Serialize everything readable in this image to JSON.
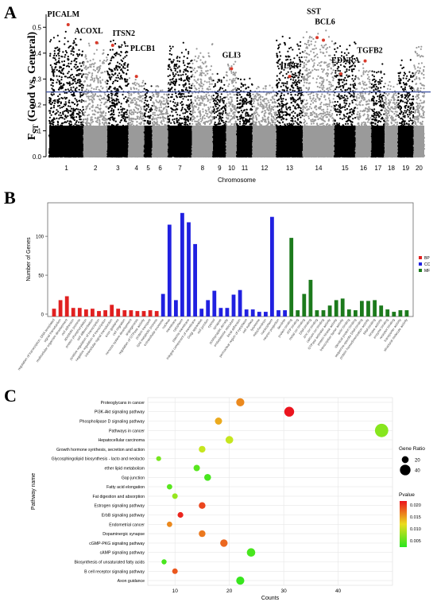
{
  "panels": {
    "a": "A",
    "b": "B",
    "c": "C"
  },
  "chart_data": [
    {
      "panel": "A",
      "type": "scatter",
      "ylabel_main": "F",
      "ylabel_sub": "ST",
      "ylabel_rest": " (Good vs. General)",
      "xlabel": "Chromosome",
      "ylim": [
        0,
        0.55
      ],
      "yticks": [
        0.0,
        0.1,
        0.2,
        0.3,
        0.4,
        0.5
      ],
      "threshold": 0.25,
      "threshold_color": "#3a4fa0",
      "point_colors": [
        "#000000",
        "#9a9a9a"
      ],
      "highlight_color": "#d93a2b",
      "chromosomes": [
        "1",
        "2",
        "3",
        "4",
        "5",
        "6",
        "7",
        "8",
        "9",
        "10",
        "11",
        "12",
        "13",
        "14",
        "15",
        "16",
        "17",
        "18",
        "19",
        "20"
      ],
      "chrom_weights": [
        13,
        9,
        8,
        6,
        3,
        6,
        9,
        8,
        5,
        4,
        6,
        9,
        10,
        12,
        8,
        6,
        5,
        5,
        6,
        4
      ],
      "chrom_peaks": [
        0.5,
        0.46,
        0.48,
        0.32,
        0.3,
        0.3,
        0.45,
        0.44,
        0.33,
        0.4,
        0.32,
        0.3,
        0.48,
        0.5,
        0.46,
        0.38,
        0.36,
        0.3,
        0.38,
        0.45
      ],
      "genes": [
        {
          "name": "PICALM",
          "chrom": "1",
          "pos": 0.55,
          "fst": 0.51
        },
        {
          "name": "ACOXL",
          "chrom": "2",
          "pos": 0.55,
          "fst": 0.44
        },
        {
          "name": "ITSN2",
          "chrom": "3",
          "pos": 0.25,
          "fst": 0.43
        },
        {
          "name": "PLCB1",
          "chrom": "4",
          "pos": 0.5,
          "fst": 0.31
        },
        {
          "name": "GLI3",
          "chrom": "10",
          "pos": 0.5,
          "fst": 0.34
        },
        {
          "name": "IL6R",
          "chrom": "13",
          "pos": 0.5,
          "fst": 0.31
        },
        {
          "name": "SST",
          "chrom": "14",
          "pos": 0.45,
          "fst": 0.46
        },
        {
          "name": "BCL6",
          "chrom": "14",
          "pos": 0.65,
          "fst": 0.45
        },
        {
          "name": "EDNRA",
          "chrom": "15",
          "pos": 0.3,
          "fst": 0.32
        },
        {
          "name": "TGFB2",
          "chrom": "16",
          "pos": 0.6,
          "fst": 0.37
        }
      ]
    },
    {
      "panel": "B",
      "type": "bar",
      "ylabel": "Number of Genes",
      "ylim": [
        0,
        140
      ],
      "yticks": [
        0,
        50,
        100
      ],
      "legend": [
        {
          "name": "BP",
          "color": "#e02020"
        },
        {
          "name": "CC",
          "color": "#2020e0"
        },
        {
          "name": "MF",
          "color": "#1c7a1c"
        }
      ],
      "series": [
        {
          "name": "BP",
          "values": [
            7,
            18,
            23,
            8,
            8,
            6,
            7,
            4,
            5,
            12,
            7,
            5,
            5,
            4,
            4,
            5,
            4
          ]
        },
        {
          "name": "CC",
          "values": [
            26,
            115,
            18,
            130,
            118,
            90,
            7,
            18,
            30,
            8,
            8,
            25,
            31,
            6,
            6,
            3,
            3,
            125,
            5,
            5
          ]
        },
        {
          "name": "MF",
          "values": [
            98,
            5,
            26,
            44,
            5,
            5,
            11,
            18,
            20,
            6,
            5,
            17,
            17,
            18,
            11,
            6,
            3,
            5,
            5
          ]
        }
      ],
      "categories_bp": [
        "regulation of transcription, DNA-templated",
        "signal transduction",
        "multicellular organism development",
        "cell adhesion",
        "apoptotic process",
        "protein phosphorylation",
        "cell differentiation",
        "positive regulation of transcription",
        "negative regulation of transcription",
        "intracellular signal transduction",
        "axon guidance",
        "cell migration",
        "nervous system development",
        "angiogenesis",
        "regulation of GTPase activity",
        "protein transport",
        "lipid metabolic process"
      ],
      "categories_cc": [
        "extracellular exosome",
        "nucleus",
        "membrane",
        "cytoplasm",
        "plasma membrane",
        "integral component of membrane",
        "Golgi apparatus",
        "cell junction",
        "cytosol",
        "synapse",
        "postsynaptic density",
        "endoplasmic reticulum",
        "focal adhesion",
        "perinuclear region of cytoplasm",
        "cell surface",
        "lysosome",
        "mitochondrion",
        "nucleoplasm",
        "neuron projection",
        "dendrite"
      ],
      "categories_mf": [
        "protein binding",
        "ATP binding",
        "metal ion binding",
        "DNA binding",
        "zinc ion binding",
        "calcium ion binding",
        "GTPase activator activity",
        "protein kinase activity",
        "transcription factor activity",
        "actin binding",
        "identical protein binding",
        "sequence-specific DNA binding",
        "protein homodimerization activity",
        "RNA binding",
        "kinase activity",
        "enzyme binding",
        "receptor binding",
        "transporter activity",
        "structural molecule activity"
      ]
    },
    {
      "panel": "C",
      "type": "scatter",
      "xlabel": "Counts",
      "ylabel": "Pathway name",
      "xlim": [
        5,
        50
      ],
      "xticks": [
        10,
        20,
        30,
        40
      ],
      "legend_size_title": "Gene Ratio",
      "legend_size_values": [
        20,
        40
      ],
      "legend_color_title": "Pvalue",
      "legend_color_ticks": [
        "0.020",
        "0.015",
        "0.010",
        "0.005"
      ],
      "pvalue_range": [
        0.001,
        0.025
      ],
      "pathways": [
        {
          "name": "Proteoglycans in cancer",
          "count": 22,
          "pvalue": 0.018
        },
        {
          "name": "PI3K-Akt signaling pathway",
          "count": 31,
          "pvalue": 0.025
        },
        {
          "name": "Phospholipase D signaling pathway",
          "count": 18,
          "pvalue": 0.016
        },
        {
          "name": "Pathways in cancer",
          "count": 48,
          "pvalue": 0.007
        },
        {
          "name": "Hepatocellular carcinoma",
          "count": 20,
          "pvalue": 0.011
        },
        {
          "name": "Growth hormone synthesis, secretion and action",
          "count": 15,
          "pvalue": 0.011
        },
        {
          "name": "Glycosphingolipid biosynthesis - lacto and neolacto",
          "count": 7,
          "pvalue": 0.006
        },
        {
          "name": "ether lipid metabolism",
          "count": 14,
          "pvalue": 0.004
        },
        {
          "name": "Gap junction",
          "count": 16,
          "pvalue": 0.003
        },
        {
          "name": "Fatty acid elongation",
          "count": 9,
          "pvalue": 0.004
        },
        {
          "name": "Fat digestion and absorption",
          "count": 10,
          "pvalue": 0.008
        },
        {
          "name": "Estrogen signaling pathway",
          "count": 15,
          "pvalue": 0.022
        },
        {
          "name": "ErbB signaling pathway",
          "count": 11,
          "pvalue": 0.024
        },
        {
          "name": "Endometrial cancer",
          "count": 9,
          "pvalue": 0.018
        },
        {
          "name": "Dopaminergic synapse",
          "count": 15,
          "pvalue": 0.019
        },
        {
          "name": "cGMP-PKG signaling pathway",
          "count": 19,
          "pvalue": 0.02
        },
        {
          "name": "cAMP signaling pathway",
          "count": 24,
          "pvalue": 0.003
        },
        {
          "name": "Biosynthesis of unsaturated fatty acids",
          "count": 8,
          "pvalue": 0.003
        },
        {
          "name": "B cell receptor signaling pathway",
          "count": 10,
          "pvalue": 0.021
        },
        {
          "name": "Axon guidance",
          "count": 22,
          "pvalue": 0.002
        }
      ]
    }
  ]
}
